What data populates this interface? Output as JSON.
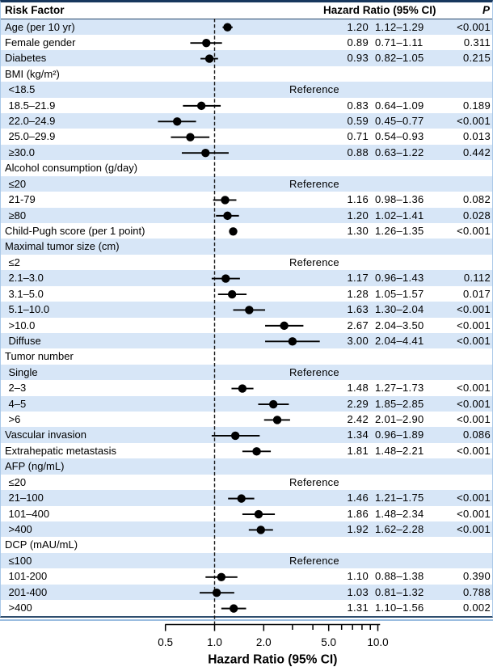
{
  "figure": {
    "header": {
      "risk_factor": "Risk Factor",
      "hazard_ratio": "Hazard Ratio (95% CI)",
      "p": "P"
    },
    "reference_label": "Reference"
  },
  "colors": {
    "band_blue": "#d7e6f7",
    "border_dark_navy": "#17375d",
    "border_light_blue": "#9bbde0",
    "marker_black": "#000000"
  },
  "chart_data": {
    "type": "forest",
    "x_scale": "log10",
    "x_axis": {
      "label": "Hazard Ratio (95% CI)",
      "range": [
        0.5,
        10.3
      ],
      "reference_line": 1.0,
      "ticks": [
        0.5,
        1,
        2,
        3,
        4,
        5,
        6,
        7,
        8,
        9,
        10
      ],
      "tick_labels": [
        {
          "v": 0.5,
          "t": "0.5"
        },
        {
          "v": 1,
          "t": "1.0"
        },
        {
          "v": 2,
          "t": "2.0"
        },
        {
          "v": 5,
          "t": "5.0"
        },
        {
          "v": 10,
          "t": "10.0"
        }
      ]
    },
    "rows": [
      {
        "label": "Age (per 10 yr)",
        "type": "item",
        "indent": 0,
        "hr": 1.2,
        "lo": 1.12,
        "hi": 1.29,
        "hr_text": "1.20",
        "ci_text": "1.12–1.29",
        "p_text": "<0.001"
      },
      {
        "label": "Female gender",
        "type": "item",
        "indent": 0,
        "hr": 0.89,
        "lo": 0.71,
        "hi": 1.11,
        "hr_text": "0.89",
        "ci_text": "0.71–1.11",
        "p_text": "0.311"
      },
      {
        "label": "Diabetes",
        "type": "item",
        "indent": 0,
        "hr": 0.93,
        "lo": 0.82,
        "hi": 1.05,
        "hr_text": "0.93",
        "ci_text": "0.82–1.05",
        "p_text": "0.215"
      },
      {
        "label": "BMI (kg/m²)",
        "type": "section",
        "indent": 0
      },
      {
        "label": "<18.5",
        "type": "reference",
        "indent": 1
      },
      {
        "label": "18.5–21.9",
        "type": "item",
        "indent": 1,
        "hr": 0.83,
        "lo": 0.64,
        "hi": 1.09,
        "hr_text": "0.83",
        "ci_text": "0.64–1.09",
        "p_text": "0.189"
      },
      {
        "label": "22.0–24.9",
        "type": "item",
        "indent": 1,
        "hr": 0.59,
        "lo": 0.45,
        "hi": 0.77,
        "hr_text": "0.59",
        "ci_text": "0.45–0.77",
        "p_text": "<0.001"
      },
      {
        "label": "25.0–29.9",
        "type": "item",
        "indent": 1,
        "hr": 0.71,
        "lo": 0.54,
        "hi": 0.93,
        "hr_text": "0.71",
        "ci_text": "0.54–0.93",
        "p_text": "0.013"
      },
      {
        "label": "≥30.0",
        "type": "item",
        "indent": 1,
        "hr": 0.88,
        "lo": 0.63,
        "hi": 1.22,
        "hr_text": "0.88",
        "ci_text": "0.63–1.22",
        "p_text": "0.442"
      },
      {
        "label": "Alcohol consumption (g/day)",
        "type": "section",
        "indent": 0
      },
      {
        "label": "≤20",
        "type": "reference",
        "indent": 1
      },
      {
        "label": "21-79",
        "type": "item",
        "indent": 1,
        "hr": 1.16,
        "lo": 0.98,
        "hi": 1.36,
        "hr_text": "1.16",
        "ci_text": "0.98–1.36",
        "p_text": "0.082"
      },
      {
        "label": "≥80",
        "type": "item",
        "indent": 1,
        "hr": 1.2,
        "lo": 1.02,
        "hi": 1.41,
        "hr_text": "1.20",
        "ci_text": "1.02–1.41",
        "p_text": "0.028"
      },
      {
        "label": "Child-Pugh score (per 1 point)",
        "type": "item",
        "indent": 0,
        "hr": 1.3,
        "lo": 1.26,
        "hi": 1.35,
        "hr_text": "1.30",
        "ci_text": "1.26–1.35",
        "p_text": "<0.001"
      },
      {
        "label": "Maximal tumor size (cm)",
        "type": "section",
        "indent": 0
      },
      {
        "label": "≤2",
        "type": "reference",
        "indent": 1
      },
      {
        "label": "2.1–3.0",
        "type": "item",
        "indent": 1,
        "hr": 1.17,
        "lo": 0.96,
        "hi": 1.43,
        "hr_text": "1.17",
        "ci_text": "0.96–1.43",
        "p_text": "0.112"
      },
      {
        "label": "3.1–5.0",
        "type": "item",
        "indent": 1,
        "hr": 1.28,
        "lo": 1.05,
        "hi": 1.57,
        "hr_text": "1.28",
        "ci_text": "1.05–1.57",
        "p_text": "0.017"
      },
      {
        "label": "5.1–10.0",
        "type": "item",
        "indent": 1,
        "hr": 1.63,
        "lo": 1.3,
        "hi": 2.04,
        "hr_text": "1.63",
        "ci_text": "1.30–2.04",
        "p_text": "<0.001"
      },
      {
        "label": ">10.0",
        "type": "item",
        "indent": 1,
        "hr": 2.67,
        "lo": 2.04,
        "hi": 3.5,
        "hr_text": "2.67",
        "ci_text": "2.04–3.50",
        "p_text": "<0.001"
      },
      {
        "label": "Diffuse",
        "type": "item",
        "indent": 1,
        "hr": 3.0,
        "lo": 2.04,
        "hi": 4.41,
        "hr_text": "3.00",
        "ci_text": "2.04–4.41",
        "p_text": "<0.001"
      },
      {
        "label": "Tumor number",
        "type": "section",
        "indent": 0
      },
      {
        "label": "Single",
        "type": "reference",
        "indent": 1
      },
      {
        "label": "2–3",
        "type": "item",
        "indent": 1,
        "hr": 1.48,
        "lo": 1.27,
        "hi": 1.73,
        "hr_text": "1.48",
        "ci_text": "1.27–1.73",
        "p_text": "<0.001"
      },
      {
        "label": "4–5",
        "type": "item",
        "indent": 1,
        "hr": 2.29,
        "lo": 1.85,
        "hi": 2.85,
        "hr_text": "2.29",
        "ci_text": "1.85–2.85",
        "p_text": "<0.001"
      },
      {
        "label": ">6",
        "type": "item",
        "indent": 1,
        "hr": 2.42,
        "lo": 2.01,
        "hi": 2.9,
        "hr_text": "2.42",
        "ci_text": "2.01–2.90",
        "p_text": "<0.001"
      },
      {
        "label": "Vascular invasion",
        "type": "item",
        "indent": 0,
        "hr": 1.34,
        "lo": 0.96,
        "hi": 1.89,
        "hr_text": "1.34",
        "ci_text": "0.96–1.89",
        "p_text": "0.086"
      },
      {
        "label": "Extrahepatic metastasis",
        "type": "item",
        "indent": 0,
        "hr": 1.81,
        "lo": 1.48,
        "hi": 2.21,
        "hr_text": "1.81",
        "ci_text": "1.48–2.21",
        "p_text": "<0.001"
      },
      {
        "label": "AFP (ng/mL)",
        "type": "section",
        "indent": 0
      },
      {
        "label": "≤20",
        "type": "reference",
        "indent": 1
      },
      {
        "label": "21–100",
        "type": "item",
        "indent": 1,
        "hr": 1.46,
        "lo": 1.21,
        "hi": 1.75,
        "hr_text": "1.46",
        "ci_text": "1.21–1.75",
        "p_text": "<0.001"
      },
      {
        "label": "101–400",
        "type": "item",
        "indent": 1,
        "hr": 1.86,
        "lo": 1.48,
        "hi": 2.34,
        "hr_text": "1.86",
        "ci_text": "1.48–2.34",
        "p_text": "<0.001"
      },
      {
        "label": ">400",
        "type": "item",
        "indent": 1,
        "hr": 1.92,
        "lo": 1.62,
        "hi": 2.28,
        "hr_text": "1.92",
        "ci_text": "1.62–2.28",
        "p_text": "<0.001"
      },
      {
        "label": "DCP (mAU/mL)",
        "type": "section",
        "indent": 0
      },
      {
        "label": "≤100",
        "type": "reference",
        "indent": 1
      },
      {
        "label": "101-200",
        "type": "item",
        "indent": 1,
        "hr": 1.1,
        "lo": 0.88,
        "hi": 1.38,
        "hr_text": "1.10",
        "ci_text": "0.88–1.38",
        "p_text": "0.390"
      },
      {
        "label": "201-400",
        "type": "item",
        "indent": 1,
        "hr": 1.03,
        "lo": 0.81,
        "hi": 1.32,
        "hr_text": "1.03",
        "ci_text": "0.81–1.32",
        "p_text": "0.788"
      },
      {
        "label": ">400",
        "type": "item",
        "indent": 1,
        "hr": 1.31,
        "lo": 1.1,
        "hi": 1.56,
        "hr_text": "1.31",
        "ci_text": "1.10–1.56",
        "p_text": "0.002"
      }
    ]
  }
}
